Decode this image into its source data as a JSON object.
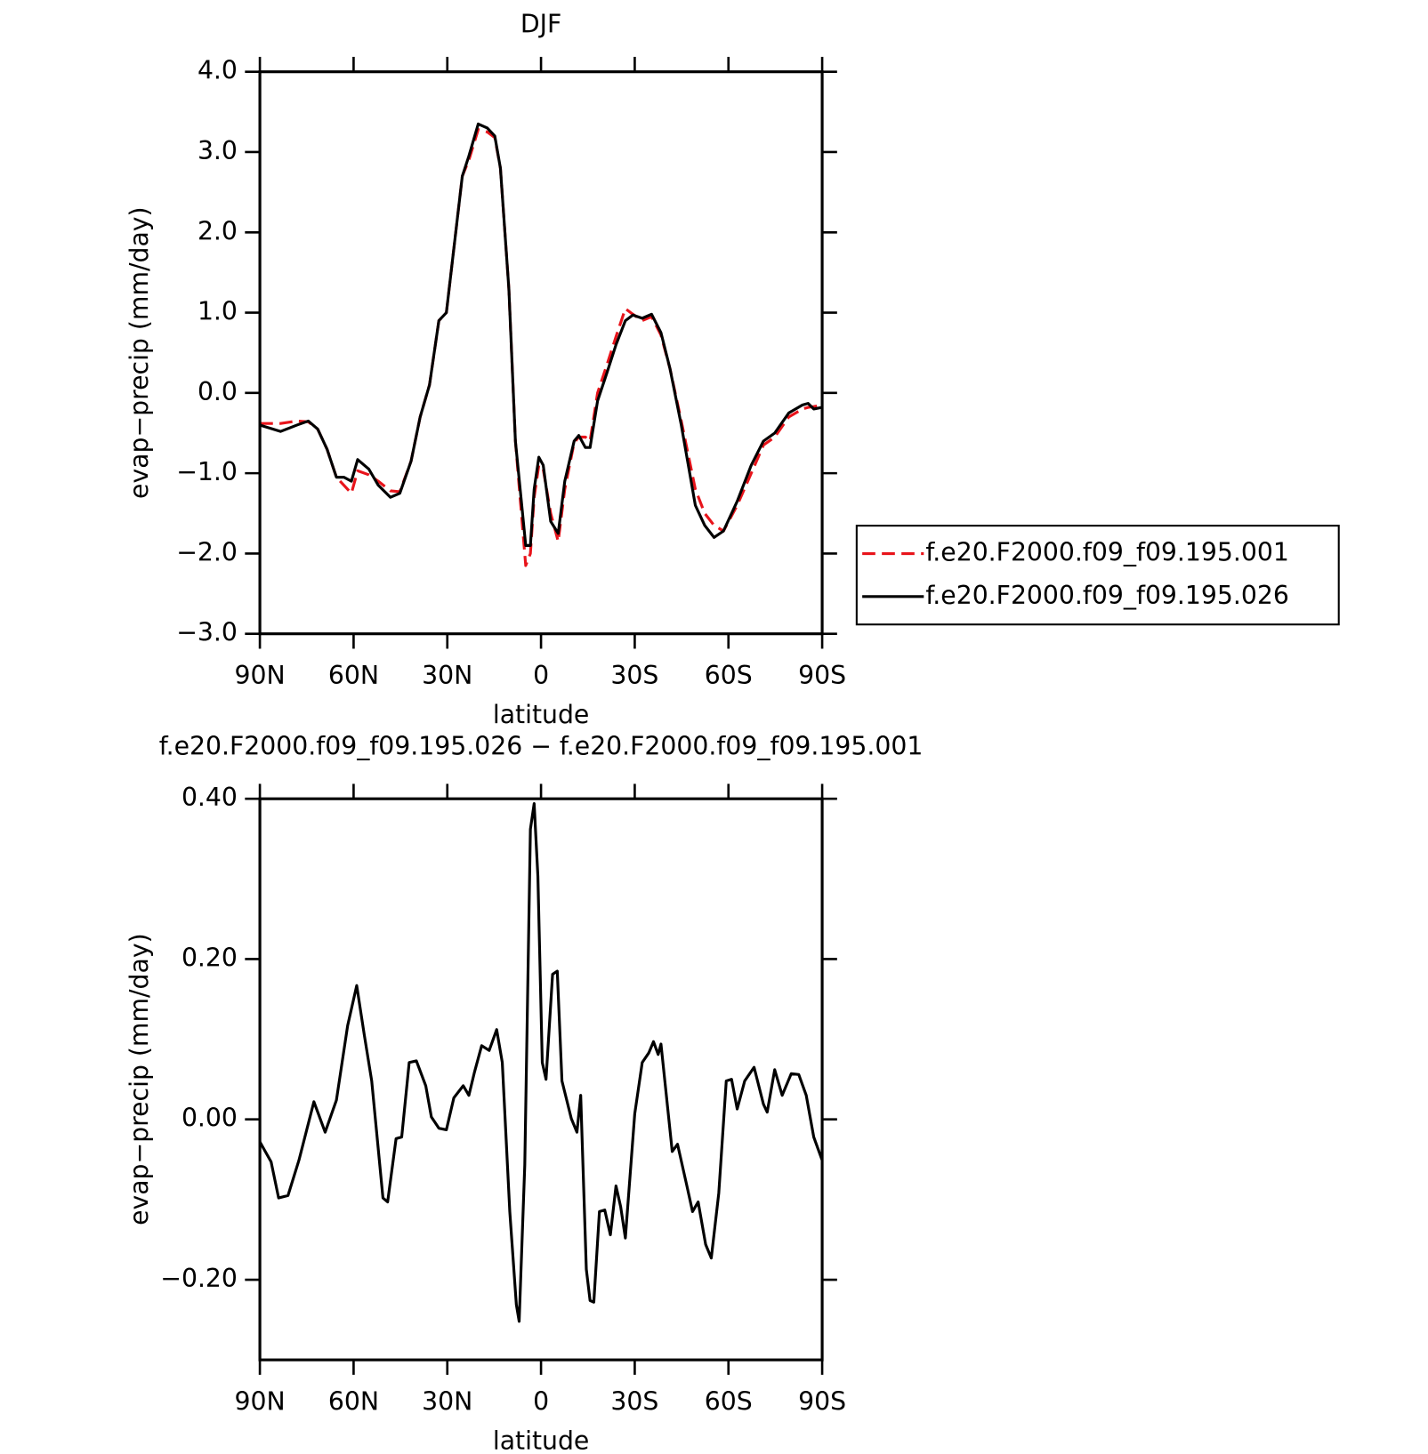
{
  "chart_data": [
    {
      "type": "line",
      "title": "DJF",
      "xlabel": "latitude",
      "ylabel": "evap−precip (mm/day)",
      "xlim": [
        90,
        -90
      ],
      "xticks": [
        {
          "value": 90,
          "label": "90N"
        },
        {
          "value": 60,
          "label": "60N"
        },
        {
          "value": 30,
          "label": "30N"
        },
        0,
        {
          "value": -30,
          "label": "30S"
        },
        {
          "value": -60,
          "label": "60S"
        },
        {
          "value": -90,
          "label": "90S"
        }
      ],
      "ylim": [
        -3,
        4
      ],
      "yticks": [
        {
          "value": -3,
          "label": "−3.0"
        },
        {
          "value": -2,
          "label": "−2.0"
        },
        {
          "value": -1,
          "label": "−1.0"
        },
        {
          "value": 0,
          "label": "0.0"
        },
        {
          "value": 1,
          "label": "1.0"
        },
        {
          "value": 2,
          "label": "2.0"
        },
        {
          "value": 3,
          "label": "3.0"
        },
        {
          "value": 4,
          "label": "4.0"
        }
      ],
      "legend": "right",
      "x": [
        90,
        83.4,
        78.1,
        74.5,
        71.5,
        68.5,
        65.5,
        63.1,
        60.7,
        58.7,
        55.1,
        52.1,
        48.2,
        45.2,
        41.6,
        38.7,
        35.7,
        32.7,
        30.3,
        28.2,
        25.2,
        23.1,
        20.1,
        17.2,
        14.8,
        13.0,
        10.3,
        8.2,
        4.9,
        3.4,
        2.2,
        0.7,
        -0.7,
        -3.1,
        -5.5,
        -7.6,
        -10.6,
        -12.1,
        -14.2,
        -15.7,
        -18.1,
        -21.1,
        -24.0,
        -27.0,
        -29.4,
        -32.4,
        -35.4,
        -38.4,
        -41.3,
        -44.9,
        -49.4,
        -52.4,
        -55.4,
        -58.4,
        -62.8,
        -67.3,
        -71.2,
        -74.8,
        -79.3,
        -83.7,
        -85.5,
        -87.3,
        -90
      ],
      "series": [
        {
          "name": "f.e20.F2000.f09_f09.195.001",
          "color": "#e8141b",
          "style": "dashed",
          "values": [
            -0.38,
            -0.38,
            -0.35,
            -0.36,
            -0.45,
            -0.7,
            -1.05,
            -1.15,
            -1.25,
            -0.97,
            -1.02,
            -1.1,
            -1.22,
            -1.23,
            -0.85,
            -0.3,
            0.1,
            0.9,
            1.0,
            1.7,
            2.7,
            2.9,
            3.28,
            3.25,
            3.18,
            2.8,
            1.3,
            -0.6,
            -2.15,
            -2.0,
            -1.3,
            -0.9,
            -0.95,
            -1.5,
            -1.85,
            -1.2,
            -0.62,
            -0.55,
            -0.55,
            -0.6,
            0.0,
            0.35,
            0.7,
            1.05,
            0.98,
            0.9,
            0.95,
            0.72,
            0.3,
            -0.35,
            -1.2,
            -1.5,
            -1.65,
            -1.72,
            -1.4,
            -1.0,
            -0.65,
            -0.55,
            -0.3,
            -0.2,
            -0.18,
            -0.17,
            -0.15
          ]
        },
        {
          "name": "f.e20.F2000.f09_f09.195.026",
          "color": "#000000",
          "style": "solid",
          "values": [
            -0.4,
            -0.48,
            -0.4,
            -0.35,
            -0.45,
            -0.7,
            -1.05,
            -1.05,
            -1.1,
            -0.83,
            -0.95,
            -1.15,
            -1.3,
            -1.25,
            -0.85,
            -0.3,
            0.1,
            0.9,
            1.0,
            1.7,
            2.7,
            2.95,
            3.35,
            3.3,
            3.2,
            2.8,
            1.3,
            -0.6,
            -1.9,
            -1.9,
            -1.2,
            -0.8,
            -0.9,
            -1.6,
            -1.75,
            -1.1,
            -0.6,
            -0.53,
            -0.68,
            -0.68,
            -0.1,
            0.25,
            0.6,
            0.9,
            0.97,
            0.93,
            0.98,
            0.75,
            0.3,
            -0.4,
            -1.4,
            -1.65,
            -1.8,
            -1.72,
            -1.35,
            -0.9,
            -0.6,
            -0.5,
            -0.25,
            -0.15,
            -0.13,
            -0.2,
            -0.18
          ]
        }
      ]
    },
    {
      "type": "line",
      "title": "f.e20.F2000.f09_f09.195.026 − f.e20.F2000.f09_f09.195.001",
      "xlabel": "latitude",
      "ylabel": "evap−precip (mm/day)",
      "xlim": [
        90,
        -90
      ],
      "xticks": [
        {
          "value": 90,
          "label": "90N"
        },
        {
          "value": 60,
          "label": "60N"
        },
        {
          "value": 30,
          "label": "30N"
        },
        0,
        {
          "value": -30,
          "label": "30S"
        },
        {
          "value": -60,
          "label": "60S"
        },
        {
          "value": -90,
          "label": "90S"
        }
      ],
      "ylim": [
        -0.3,
        0.4
      ],
      "yticks": [
        {
          "value": -0.2,
          "label": "−0.20"
        },
        {
          "value": 0,
          "label": "0.00"
        },
        {
          "value": 0.2,
          "label": "0.20"
        },
        {
          "value": 0.4,
          "label": "0.40"
        }
      ],
      "color": "#000000",
      "x": [
        90,
        86.4,
        84.0,
        81.0,
        77.5,
        72.7,
        69.1,
        65.5,
        61.9,
        59.0,
        56.6,
        54.2,
        50.6,
        49.1,
        46.4,
        44.6,
        42.2,
        39.9,
        36.9,
        35.1,
        32.7,
        30.3,
        27.9,
        24.9,
        23.1,
        21.3,
        19.0,
        16.6,
        14.2,
        12.4,
        10.0,
        7.9,
        7.0,
        5.2,
        3.4,
        2.2,
        1.0,
        -0.4,
        -1.6,
        -3.7,
        -5.2,
        -6.7,
        -9.7,
        -11.5,
        -12.7,
        -14.5,
        -15.7,
        -16.9,
        -18.7,
        -20.4,
        -22.2,
        -24.0,
        -25.5,
        -27.0,
        -30.0,
        -32.4,
        -34.5,
        -36.0,
        -37.5,
        -38.4,
        -42.0,
        -43.7,
        -46.7,
        -48.5,
        -50.3,
        -52.7,
        -54.5,
        -56.9,
        -59.3,
        -61.0,
        -62.8,
        -65.2,
        -68.2,
        -71.2,
        -72.4,
        -74.8,
        -77.2,
        -80.1,
        -82.5,
        -84.9,
        -87.3,
        -90
      ],
      "values": [
        -0.028,
        -0.053,
        -0.098,
        -0.095,
        -0.051,
        0.022,
        -0.016,
        0.024,
        0.117,
        0.167,
        0.106,
        0.048,
        -0.098,
        -0.103,
        -0.024,
        -0.022,
        0.071,
        0.073,
        0.042,
        0.003,
        -0.011,
        -0.013,
        0.027,
        0.042,
        0.03,
        0.059,
        0.092,
        0.086,
        0.112,
        0.071,
        -0.115,
        -0.231,
        -0.252,
        -0.057,
        0.362,
        0.394,
        0.303,
        0.071,
        0.05,
        0.181,
        0.185,
        0.048,
        0.001,
        -0.016,
        0.03,
        -0.187,
        -0.226,
        -0.228,
        -0.115,
        -0.113,
        -0.144,
        -0.083,
        -0.109,
        -0.148,
        0.007,
        0.071,
        0.083,
        0.097,
        0.081,
        0.094,
        -0.04,
        -0.031,
        -0.083,
        -0.115,
        -0.103,
        -0.156,
        -0.173,
        -0.092,
        0.048,
        0.05,
        0.013,
        0.048,
        0.065,
        0.019,
        0.009,
        0.062,
        0.03,
        0.057,
        0.056,
        0.03,
        -0.022,
        -0.051
      ]
    }
  ]
}
